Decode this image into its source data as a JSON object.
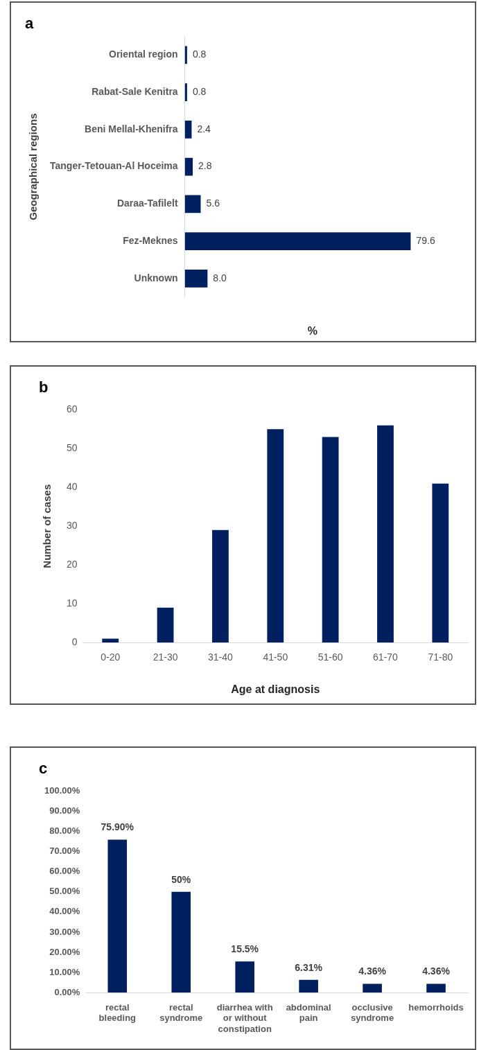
{
  "chart_data": [
    {
      "type": "bar",
      "title": "a",
      "orientation": "horizontal",
      "ylabel": "Geographical regions",
      "xlabel": "%",
      "categories": [
        "Oriental region",
        "Rabat-Sale Kenitra",
        "Beni Mellal-Khenifra",
        "Tanger-Tetouan-Al Hoceima",
        "Daraa-Tafilelt",
        "Fez-Meknes",
        "Unknown"
      ],
      "values": [
        0.8,
        0.8,
        2.4,
        2.8,
        5.6,
        79.6,
        8.0
      ],
      "value_labels": [
        "0.8",
        "0.8",
        "2.4",
        "2.8",
        "5.6",
        "79.6",
        "8.0"
      ],
      "color": "#002060",
      "tick_labels": "y",
      "grid": false,
      "legend": false
    },
    {
      "type": "bar",
      "title": "b",
      "ylabel": "Number of cases",
      "xlabel": "Age at diagnosis",
      "categories": [
        "0-20",
        "21-30",
        "31-40",
        "41-50",
        "51-60",
        "61-70",
        "71-80"
      ],
      "values": [
        1,
        9,
        29,
        55,
        53,
        56,
        41
      ],
      "color": "#002060",
      "ylim": [
        0,
        60
      ],
      "yticks": [
        0,
        10,
        20,
        30,
        40,
        50,
        60
      ],
      "grid": false,
      "legend": false
    },
    {
      "type": "bar",
      "title": "c",
      "categories": [
        "rectal bleeding",
        "rectal syndrome",
        "diarrhea with or without constipation",
        "abdominal pain",
        "occlusive syndrome",
        "hemorrhoids"
      ],
      "values": [
        75.9,
        50,
        15.5,
        6.31,
        4.36,
        4.36
      ],
      "value_labels": [
        "75.90%",
        "50%",
        "15.5%",
        "6.31%",
        "4.36%",
        "4.36%"
      ],
      "color": "#002060",
      "ylim": [
        0,
        100
      ],
      "yticks": [
        {
          "value": 0,
          "label": "0.00%"
        },
        {
          "value": 10,
          "label": "10.00%"
        },
        {
          "value": 20,
          "label": "20.00%"
        },
        {
          "value": 30,
          "label": "30.00%"
        },
        {
          "value": 40,
          "label": "40.00%"
        },
        {
          "value": 50,
          "label": "50.00%"
        },
        {
          "value": 60,
          "label": "60.00%"
        },
        {
          "value": 70,
          "label": "70.00%"
        },
        {
          "value": 80,
          "label": "80.00%"
        },
        {
          "value": 90,
          "label": "90.00%"
        },
        {
          "value": 100,
          "label": "100.00%"
        }
      ],
      "grid": false,
      "legend": false
    }
  ]
}
